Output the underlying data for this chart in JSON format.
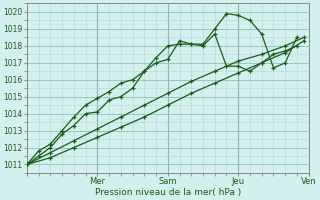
{
  "title": "",
  "xlabel": "Pression niveau de la mer( hPa )",
  "background_color": "#d4f0ee",
  "grid_color_minor": "#b0d8d4",
  "grid_color_major": "#90c0bc",
  "line_color": "#1a5c1a",
  "ylim": [
    1010.5,
    1020.5
  ],
  "xlim": [
    0,
    12
  ],
  "lines": [
    {
      "x": [
        0.0,
        0.5,
        1.0,
        1.5,
        2.0,
        2.5,
        3.0,
        3.5,
        4.0,
        4.5,
        5.0,
        5.5,
        6.0,
        6.5,
        7.0,
        7.5,
        8.0,
        8.5,
        9.0,
        9.5,
        10.0,
        10.5,
        11.0,
        11.5
      ],
      "y": [
        1011.0,
        1011.5,
        1012.0,
        1012.8,
        1013.3,
        1014.0,
        1014.1,
        1014.8,
        1015.0,
        1015.5,
        1016.5,
        1017.0,
        1017.2,
        1018.3,
        1018.1,
        1018.1,
        1019.0,
        1019.9,
        1019.8,
        1019.5,
        1018.7,
        1016.7,
        1017.0,
        1018.5
      ]
    },
    {
      "x": [
        0.0,
        0.5,
        1.0,
        1.5,
        2.0,
        2.5,
        3.0,
        3.5,
        4.0,
        4.5,
        5.0,
        5.5,
        6.0,
        6.5,
        7.0,
        7.5,
        8.0,
        8.5,
        9.0,
        9.5,
        10.0,
        10.5,
        11.0,
        11.5
      ],
      "y": [
        1011.0,
        1011.8,
        1012.2,
        1013.0,
        1013.8,
        1014.5,
        1014.9,
        1015.3,
        1015.8,
        1016.0,
        1016.5,
        1017.3,
        1018.0,
        1018.1,
        1018.1,
        1018.0,
        1018.7,
        1016.8,
        1016.8,
        1016.5,
        1017.0,
        1017.5,
        1017.7,
        1018.0
      ]
    },
    {
      "x": [
        0.0,
        1.0,
        2.0,
        3.0,
        4.0,
        5.0,
        6.0,
        7.0,
        8.0,
        9.0,
        10.0,
        11.0,
        11.8
      ],
      "y": [
        1011.0,
        1011.7,
        1012.4,
        1013.1,
        1013.8,
        1014.5,
        1015.2,
        1015.9,
        1016.5,
        1017.1,
        1017.5,
        1018.0,
        1018.5
      ]
    },
    {
      "x": [
        0.0,
        1.0,
        2.0,
        3.0,
        4.0,
        5.0,
        6.0,
        7.0,
        8.0,
        9.0,
        10.0,
        11.0,
        11.8
      ],
      "y": [
        1011.0,
        1011.4,
        1012.0,
        1012.6,
        1013.2,
        1013.8,
        1014.5,
        1015.2,
        1015.8,
        1016.4,
        1017.0,
        1017.6,
        1018.3
      ]
    }
  ],
  "yticks": [
    1011,
    1012,
    1013,
    1014,
    1015,
    1016,
    1017,
    1018,
    1019,
    1020
  ],
  "xtick_positions": [
    0,
    3,
    6,
    9,
    12
  ],
  "xtick_labels": [
    "",
    "Mer",
    "Sam",
    "Jeu",
    "Ven"
  ],
  "vlines": [
    3,
    6,
    9,
    12
  ]
}
